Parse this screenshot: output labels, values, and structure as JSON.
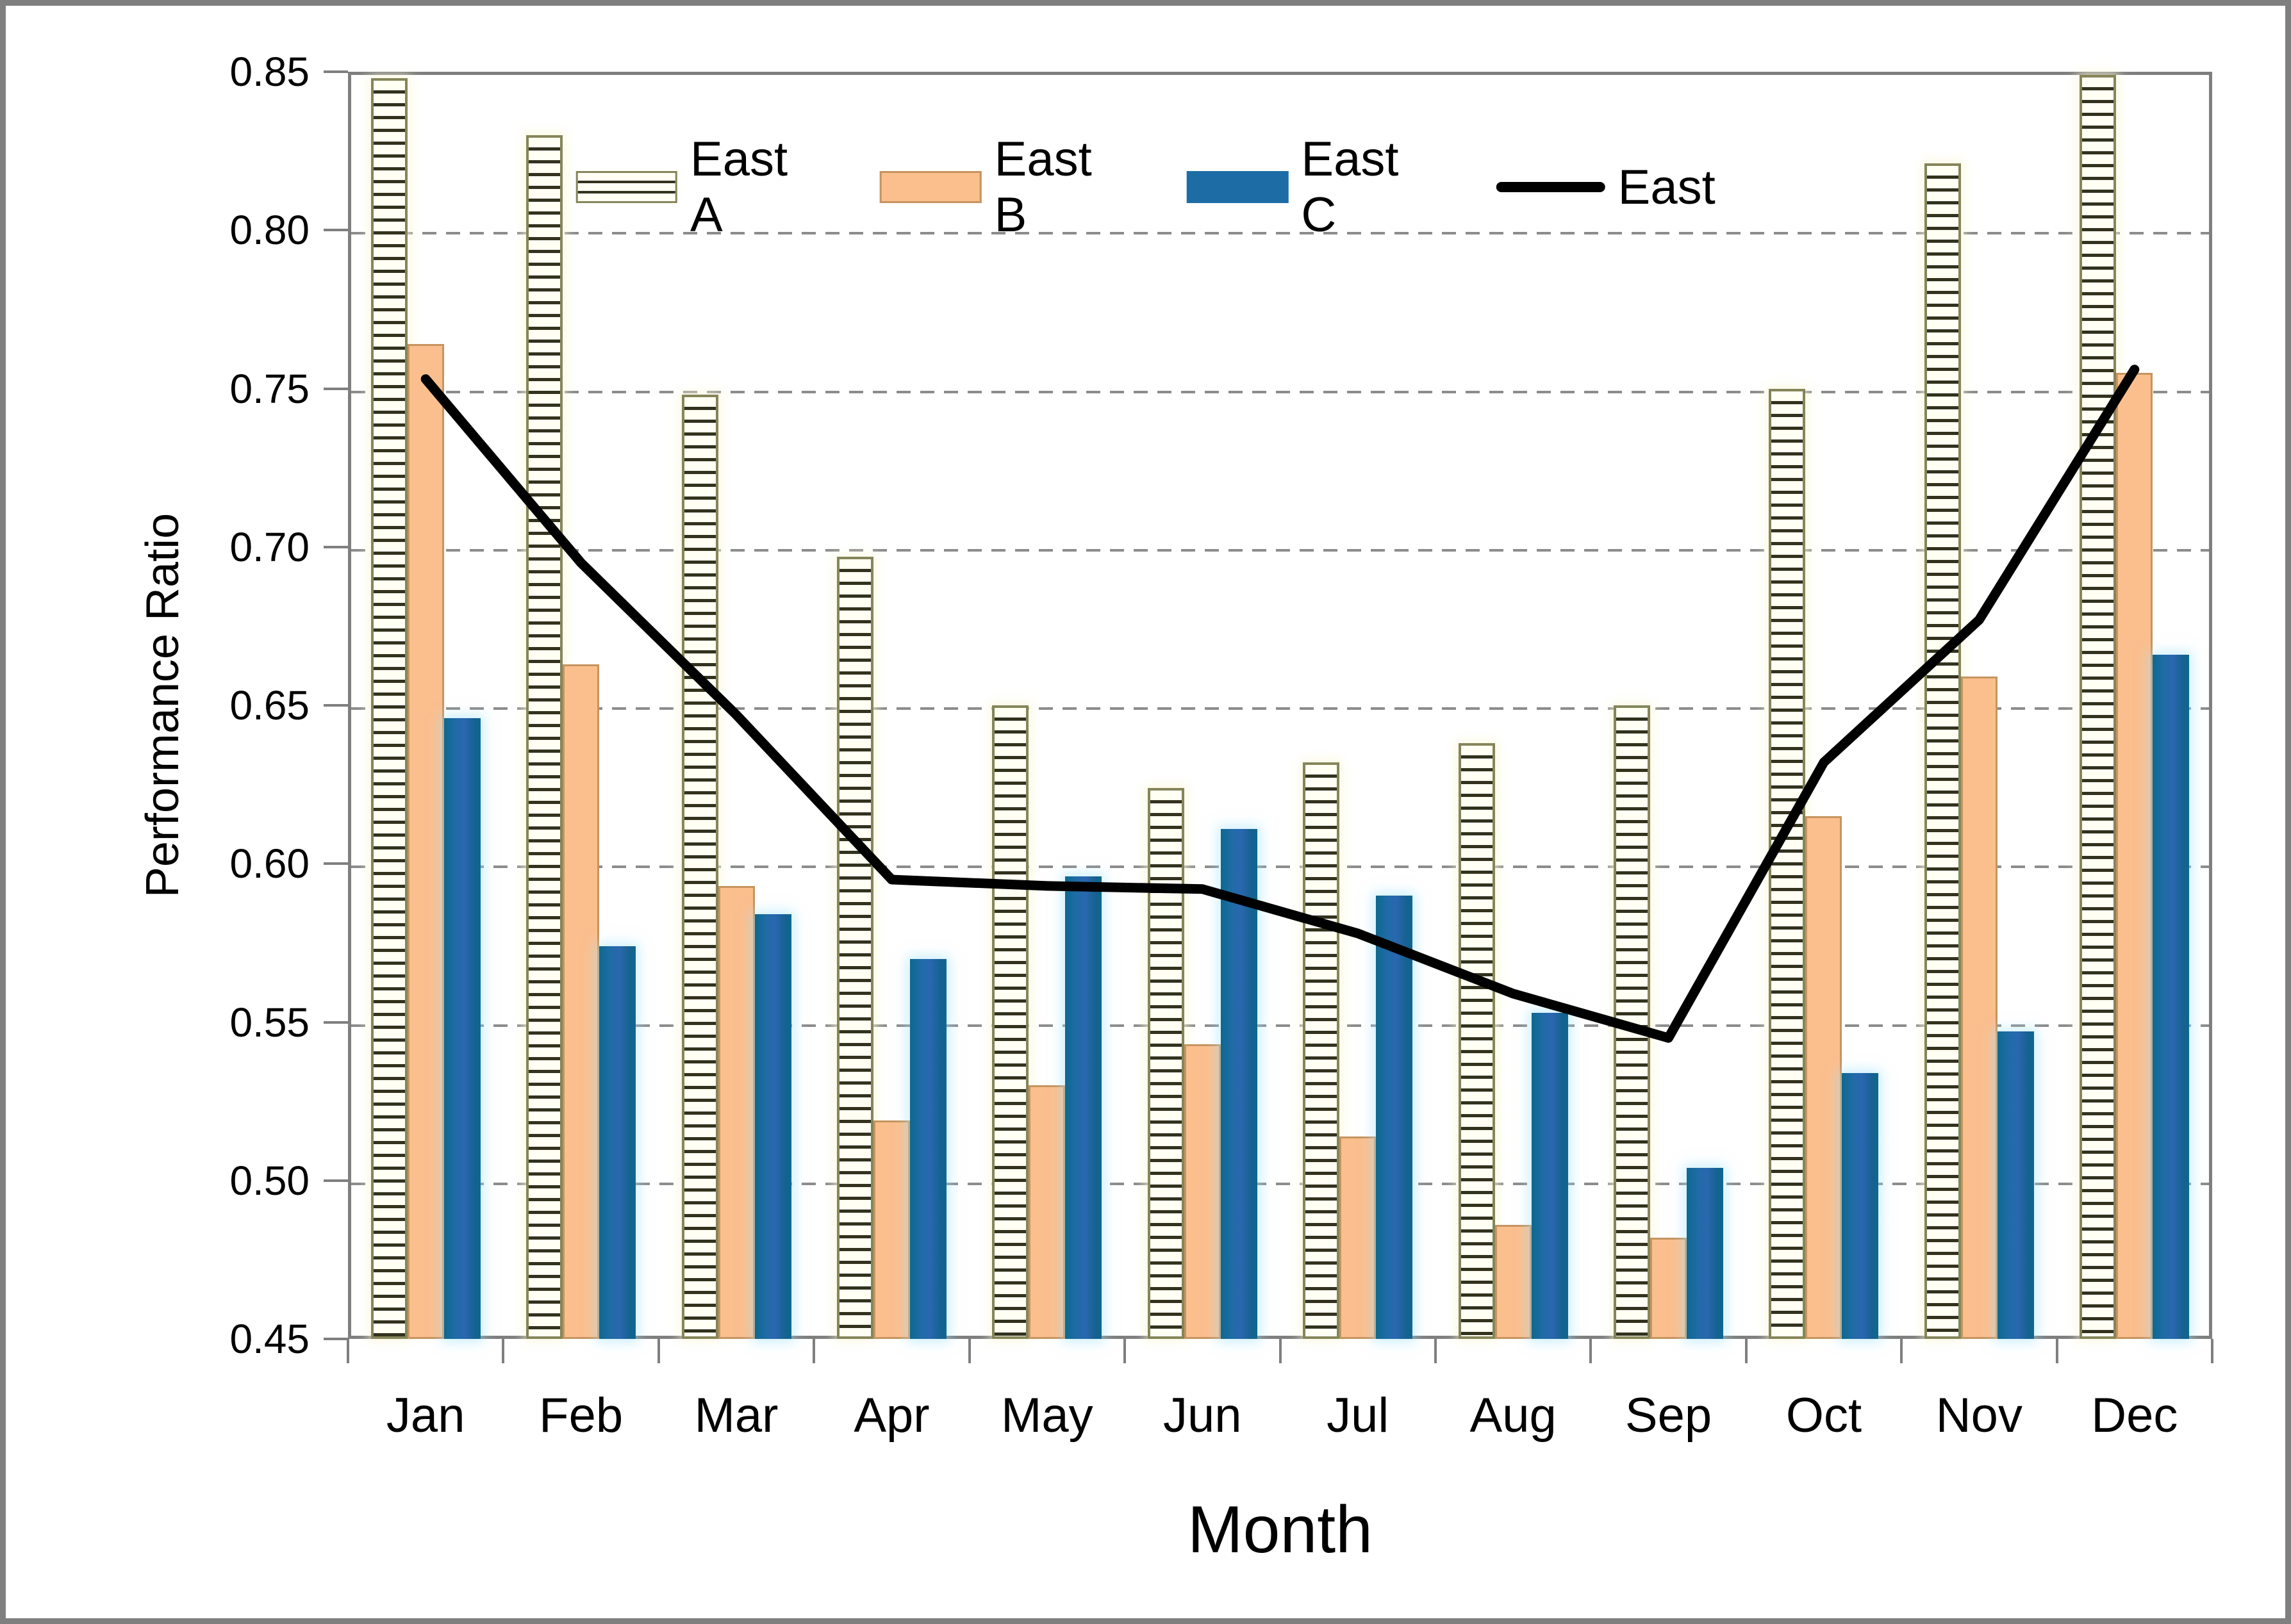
{
  "chart_data": {
    "type": "bar+line",
    "title": "",
    "categories": [
      "Jan",
      "Feb",
      "Mar",
      "Apr",
      "May",
      "Jun",
      "Jul",
      "Aug",
      "Sep",
      "Oct",
      "Nov",
      "Dec"
    ],
    "series": [
      {
        "name": "East A",
        "type": "bar",
        "style": "hatched",
        "values": [
          0.848,
          0.83,
          0.748,
          0.697,
          0.65,
          0.624,
          0.632,
          0.638,
          0.65,
          0.75,
          0.821,
          0.849
        ]
      },
      {
        "name": "East B",
        "type": "bar",
        "style": "orange",
        "values": [
          0.764,
          0.663,
          0.593,
          0.519,
          0.53,
          0.543,
          0.514,
          0.486,
          0.482,
          0.615,
          0.659,
          0.755
        ]
      },
      {
        "name": "East C",
        "type": "bar",
        "style": "blue",
        "values": [
          0.646,
          0.574,
          0.584,
          0.57,
          0.596,
          0.611,
          0.59,
          0.553,
          0.504,
          0.534,
          0.547,
          0.666
        ]
      },
      {
        "name": "East",
        "type": "line",
        "style": "black-line",
        "values": [
          0.753,
          0.695,
          0.647,
          0.595,
          0.593,
          0.592,
          0.578,
          0.559,
          0.545,
          0.632,
          0.677,
          0.756
        ]
      }
    ],
    "xlabel": "Month",
    "ylabel": "Performance Ratio",
    "ylim": [
      0.45,
      0.85
    ],
    "ytick_step": 0.05,
    "ytick_labels": [
      "0.45",
      "0.50",
      "0.55",
      "0.60",
      "0.65",
      "0.70",
      "0.75",
      "0.80",
      "0.85"
    ],
    "grid": "horizontal-dashed",
    "legend_position": "top-center"
  },
  "colors": {
    "east_a_fill": "#FFFFF4",
    "east_a_border": "#85855A",
    "east_a_hatch": "#32321E",
    "east_b_fill": "#FBBF8E",
    "east_b_border": "#C6945F",
    "east_c_fill": "#1E6CA6",
    "east_line": "#000000",
    "gridline": "#8C8C8C",
    "axis": "#7F7F7F",
    "text": "#000000"
  }
}
